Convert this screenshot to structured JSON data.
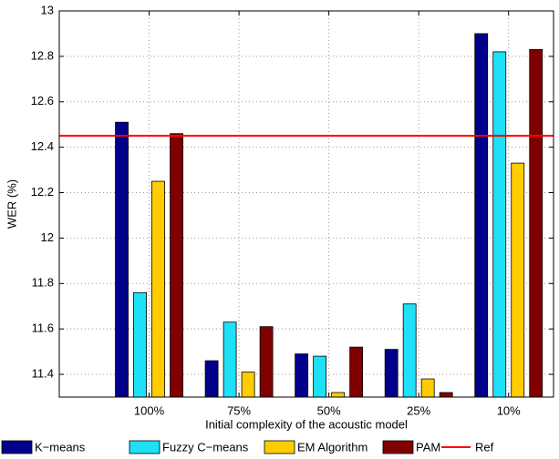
{
  "chart_data": {
    "type": "bar",
    "y_label": "WER (%)",
    "x_label": "Initial complexity of the acoustic model",
    "categories": [
      "100%",
      "75%",
      "50%",
      "25%",
      "10%"
    ],
    "series": [
      {
        "name": "K−means",
        "color": "#00008b",
        "values": [
          12.51,
          11.46,
          11.49,
          11.51,
          12.9
        ]
      },
      {
        "name": "Fuzzy C−means",
        "color": "#1ee0f7",
        "values": [
          11.76,
          11.63,
          11.48,
          11.71,
          12.82
        ]
      },
      {
        "name": "EM Algorithm",
        "color": "#ffcc00",
        "values": [
          12.25,
          11.41,
          11.32,
          11.38,
          12.33
        ]
      },
      {
        "name": "PAM",
        "color": "#800000",
        "values": [
          12.46,
          11.61,
          11.52,
          11.32,
          12.83
        ]
      }
    ],
    "reference": {
      "name": "Ref",
      "color": "#ff0000",
      "value": 12.45
    },
    "ylim": [
      11.3,
      13
    ],
    "yticks": [
      11.4,
      11.6,
      11.8,
      12,
      12.2,
      12.4,
      12.6,
      12.8,
      13
    ],
    "grid": true
  }
}
